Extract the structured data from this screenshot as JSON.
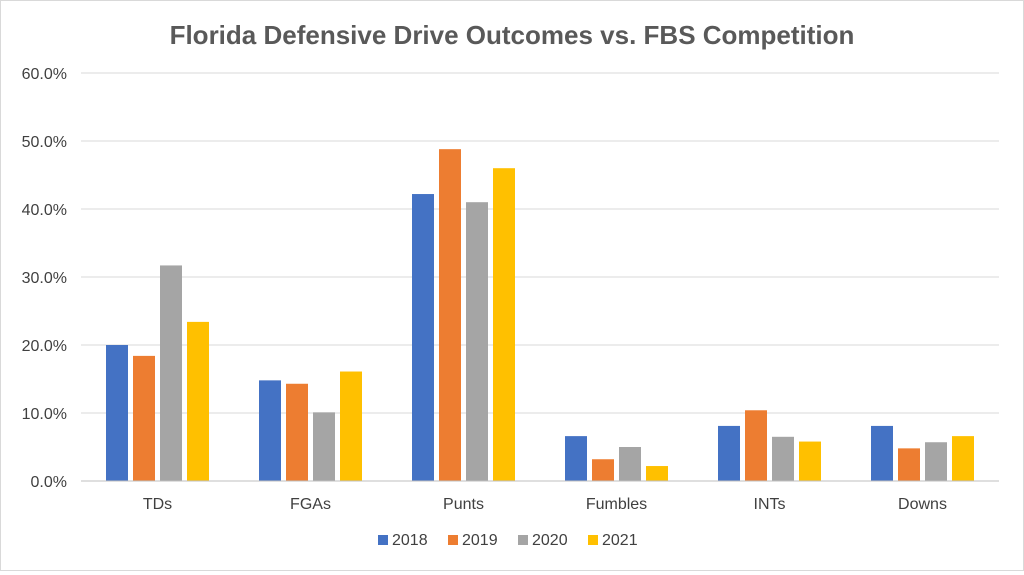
{
  "chart_data": {
    "type": "bar",
    "title": "Florida Defensive Drive Outcomes vs. FBS Competition",
    "categories": [
      "TDs",
      "FGAs",
      "Punts",
      "Fumbles",
      "INTs",
      "Downs"
    ],
    "series": [
      {
        "name": "2018",
        "color": "#4472c4",
        "values": [
          20.0,
          14.8,
          42.2,
          6.6,
          8.1,
          8.1
        ]
      },
      {
        "name": "2019",
        "color": "#ed7d31",
        "values": [
          18.4,
          14.3,
          48.8,
          3.2,
          10.4,
          4.8
        ]
      },
      {
        "name": "2020",
        "color": "#a5a5a5",
        "values": [
          31.7,
          10.1,
          41.0,
          5.0,
          6.5,
          5.7
        ]
      },
      {
        "name": "2021",
        "color": "#ffc000",
        "values": [
          23.4,
          16.1,
          46.0,
          2.2,
          5.8,
          6.6
        ]
      }
    ],
    "ylim": [
      0,
      60
    ],
    "yticks": [
      "0.0%",
      "10.0%",
      "20.0%",
      "30.0%",
      "40.0%",
      "50.0%",
      "60.0%"
    ],
    "gridlines": true,
    "legend_position": "bottom"
  }
}
